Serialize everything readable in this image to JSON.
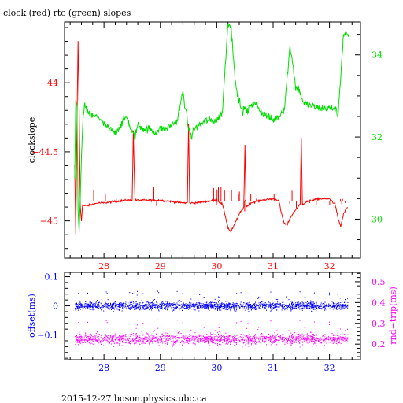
{
  "title": "clock (red) rtc (green) slopes",
  "footer": "2015-12-27 boson.physics.ubc.ca",
  "colors": {
    "red": "#ff0000",
    "green": "#00e000",
    "blue": "#0000ff",
    "magenta": "#ff00ff",
    "axis": "#000000"
  },
  "chart_data": [
    {
      "type": "line",
      "title": "clock (red) rtc (green) slopes",
      "xlabel": "",
      "ylabel": "clockslope",
      "y2label": "",
      "xlim": [
        27.3,
        32.55
      ],
      "ylim": [
        -45.27,
        -43.56
      ],
      "y2lim": [
        29.05,
        34.8
      ],
      "xticks": [
        28,
        29,
        30,
        31,
        32
      ],
      "xtick_labels": [
        "28",
        "29",
        "30",
        "31",
        "32"
      ],
      "yticks": [
        -44,
        -44.5,
        -45
      ],
      "ytick_labels": [
        "−44",
        "−44.5",
        "−45"
      ],
      "y2ticks": [
        30,
        32,
        34
      ],
      "y2tick_labels": [
        "30",
        "32",
        "34"
      ],
      "series": [
        {
          "axis": "left",
          "color": "#ff0000",
          "x": [
            27.48,
            27.5,
            27.52,
            27.54,
            27.56,
            27.58,
            27.6,
            27.62,
            27.64,
            27.7,
            27.8,
            27.9,
            28.0,
            28.2,
            28.4,
            28.5,
            28.52,
            28.55,
            28.6,
            28.8,
            29.0,
            29.2,
            29.4,
            29.48,
            29.5,
            29.52,
            29.6,
            29.8,
            30.0,
            30.1,
            30.15,
            30.2,
            30.25,
            30.3,
            30.4,
            30.48,
            30.5,
            30.52,
            30.6,
            30.8,
            31.0,
            31.1,
            31.15,
            31.2,
            31.25,
            31.3,
            31.4,
            31.48,
            31.5,
            31.52,
            31.6,
            31.8,
            32.0,
            32.1,
            32.15,
            32.2,
            32.25,
            32.32
          ],
          "y": [
            -44.6,
            -45.1,
            -44.3,
            -43.7,
            -44.2,
            -44.9,
            -45.0,
            -44.88,
            -44.89,
            -44.89,
            -44.88,
            -44.87,
            -44.87,
            -44.86,
            -44.85,
            -44.85,
            -44.35,
            -44.85,
            -44.85,
            -44.85,
            -44.85,
            -44.86,
            -44.87,
            -44.87,
            -44.3,
            -44.87,
            -44.87,
            -44.86,
            -44.85,
            -44.88,
            -44.96,
            -45.05,
            -45.08,
            -45.04,
            -44.95,
            -44.9,
            -44.45,
            -44.9,
            -44.87,
            -44.85,
            -44.84,
            -44.85,
            -44.95,
            -45.02,
            -45.03,
            -44.98,
            -44.92,
            -44.88,
            -44.4,
            -44.88,
            -44.86,
            -44.84,
            -44.84,
            -44.88,
            -44.98,
            -45.04,
            -44.95,
            -44.9
          ]
        },
        {
          "axis": "right",
          "color": "#00e000",
          "x": [
            27.48,
            27.5,
            27.52,
            27.54,
            27.56,
            27.58,
            27.6,
            27.62,
            27.65,
            27.7,
            27.8,
            27.9,
            28.0,
            28.2,
            28.4,
            28.5,
            28.55,
            28.6,
            28.7,
            28.8,
            28.9,
            29.0,
            29.1,
            29.2,
            29.3,
            29.4,
            29.5,
            29.55,
            29.6,
            29.8,
            30.0,
            30.1,
            30.2,
            30.25,
            30.3,
            30.35,
            30.4,
            30.45,
            30.5,
            30.55,
            30.6,
            30.7,
            30.8,
            30.9,
            31.0,
            31.1,
            31.2,
            31.3,
            31.35,
            31.4,
            31.45,
            31.5,
            31.55,
            31.6,
            31.8,
            32.0,
            32.1,
            32.15,
            32.2,
            32.25,
            32.3,
            32.35
          ],
          "y": [
            31.0,
            32.9,
            32.7,
            30.3,
            29.7,
            30.5,
            31.5,
            32.2,
            32.8,
            32.6,
            32.5,
            32.5,
            32.3,
            32.1,
            32.5,
            32.1,
            32.0,
            32.3,
            32.2,
            32.2,
            32.1,
            32.2,
            32.2,
            32.3,
            32.4,
            33.1,
            32.2,
            32.0,
            32.2,
            32.4,
            32.4,
            32.6,
            34.8,
            34.7,
            33.9,
            33.1,
            32.9,
            32.6,
            32.7,
            32.6,
            32.8,
            32.8,
            32.6,
            32.5,
            32.4,
            32.5,
            32.7,
            34.2,
            33.8,
            33.2,
            33.2,
            33.0,
            32.8,
            32.8,
            32.7,
            32.7,
            32.7,
            32.5,
            33.5,
            34.5,
            34.5,
            34.4
          ]
        }
      ]
    },
    {
      "type": "scatter",
      "xlabel": "",
      "ylabel": "offset(ms)",
      "y2label": "rnd−trip(ms)",
      "xlim": [
        27.3,
        32.55
      ],
      "ylim": [
        -0.185,
        0.115
      ],
      "y2lim": [
        0.125,
        0.545
      ],
      "xticks": [
        28,
        29,
        30,
        31,
        32
      ],
      "xtick_labels": [
        "28",
        "29",
        "30",
        "31",
        "32"
      ],
      "yticks": [
        0.1,
        0,
        -0.1
      ],
      "ytick_labels": [
        "0.1",
        "0",
        "−0.1"
      ],
      "y2ticks": [
        0.2,
        0.3,
        0.4,
        0.5
      ],
      "y2tick_labels": [
        "0.2",
        "0.3",
        "0.4",
        "0.5"
      ],
      "series": [
        {
          "axis": "left",
          "color": "#0000ff",
          "x_range": [
            27.48,
            32.32
          ],
          "center": 0.0,
          "spread": 0.012
        },
        {
          "axis": "right",
          "color": "#ff00ff",
          "x_range": [
            27.48,
            32.32
          ],
          "center": 0.225,
          "spread": 0.022
        }
      ]
    }
  ]
}
